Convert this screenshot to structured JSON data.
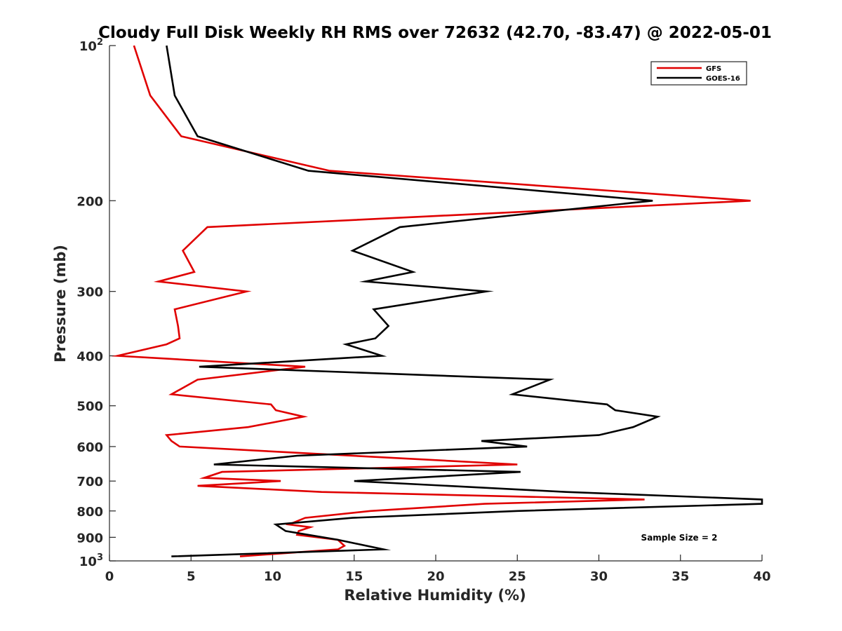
{
  "chart_data": {
    "type": "line",
    "title": "Cloudy Full Disk Weekly RH RMS over 72632 (42.70, -83.47) @ 2022-05-01",
    "xlabel": "Relative Humidity (%)",
    "ylabel": "Pressure (mb)",
    "xlim": [
      0,
      40
    ],
    "ylim": [
      100,
      1000
    ],
    "yscale": "log",
    "y_reversed": true,
    "xticks": [
      "0",
      "5",
      "10",
      "15",
      "20",
      "25",
      "30",
      "35",
      "40"
    ],
    "yticks": [
      {
        "value": 100,
        "label": "10",
        "sup": "2"
      },
      {
        "value": 200,
        "label": "200",
        "sup": ""
      },
      {
        "value": 300,
        "label": "300",
        "sup": ""
      },
      {
        "value": 400,
        "label": "400",
        "sup": ""
      },
      {
        "value": 500,
        "label": "500",
        "sup": ""
      },
      {
        "value": 600,
        "label": "600",
        "sup": ""
      },
      {
        "value": 700,
        "label": "700",
        "sup": ""
      },
      {
        "value": 800,
        "label": "800",
        "sup": ""
      },
      {
        "value": 900,
        "label": "900",
        "sup": ""
      },
      {
        "value": 1000,
        "label": "10",
        "sup": "3"
      }
    ],
    "grid": false,
    "legend_position": "top-right",
    "annotation": "Sample Size = 2",
    "series": [
      {
        "name": "GFS",
        "color": "#e00000",
        "points": [
          [
            1.5,
            100
          ],
          [
            2.5,
            125
          ],
          [
            4.4,
            150
          ],
          [
            13.5,
            175
          ],
          [
            39.3,
            200
          ],
          [
            6.0,
            225
          ],
          [
            4.5,
            250
          ],
          [
            5.2,
            275
          ],
          [
            3.0,
            287
          ],
          [
            8.4,
            300
          ],
          [
            4.0,
            325
          ],
          [
            4.2,
            350
          ],
          [
            4.3,
            370
          ],
          [
            3.5,
            380
          ],
          [
            0.5,
            400
          ],
          [
            12.0,
            420
          ],
          [
            5.4,
            445
          ],
          [
            3.8,
            475
          ],
          [
            9.9,
            497
          ],
          [
            10.2,
            510
          ],
          [
            11.9,
            525
          ],
          [
            8.5,
            550
          ],
          [
            3.5,
            570
          ],
          [
            3.8,
            585
          ],
          [
            4.3,
            600
          ],
          [
            25.0,
            650
          ],
          [
            6.9,
            672
          ],
          [
            5.8,
            690
          ],
          [
            10.5,
            700
          ],
          [
            5.4,
            715
          ],
          [
            13.0,
            735
          ],
          [
            32.8,
            760
          ],
          [
            23.0,
            775
          ],
          [
            16.0,
            800
          ],
          [
            12.0,
            825
          ],
          [
            11.0,
            850
          ],
          [
            12.3,
            860
          ],
          [
            11.6,
            875
          ],
          [
            11.5,
            890
          ],
          [
            14.0,
            910
          ],
          [
            14.4,
            935
          ],
          [
            14.0,
            950
          ],
          [
            8.0,
            980
          ]
        ]
      },
      {
        "name": "GOES-16",
        "color": "#000000",
        "points": [
          [
            3.5,
            100
          ],
          [
            4.0,
            125
          ],
          [
            5.4,
            150
          ],
          [
            12.2,
            175
          ],
          [
            33.3,
            200
          ],
          [
            17.8,
            225
          ],
          [
            14.9,
            250
          ],
          [
            18.6,
            275
          ],
          [
            15.7,
            287
          ],
          [
            23.1,
            300
          ],
          [
            16.2,
            325
          ],
          [
            17.1,
            350
          ],
          [
            16.3,
            370
          ],
          [
            14.5,
            380
          ],
          [
            16.7,
            400
          ],
          [
            5.5,
            420
          ],
          [
            27.0,
            445
          ],
          [
            24.7,
            475
          ],
          [
            30.5,
            497
          ],
          [
            31.0,
            510
          ],
          [
            33.6,
            525
          ],
          [
            32.1,
            550
          ],
          [
            30.0,
            570
          ],
          [
            22.8,
            585
          ],
          [
            25.6,
            600
          ],
          [
            11.5,
            625
          ],
          [
            6.4,
            650
          ],
          [
            25.2,
            672
          ],
          [
            15.0,
            700
          ],
          [
            28.0,
            735
          ],
          [
            40.0,
            760
          ],
          [
            40.0,
            775
          ],
          [
            25.0,
            800
          ],
          [
            14.9,
            825
          ],
          [
            10.2,
            850
          ],
          [
            10.8,
            875
          ],
          [
            14.0,
            910
          ],
          [
            16.8,
            950
          ],
          [
            3.8,
            980
          ]
        ]
      }
    ]
  }
}
